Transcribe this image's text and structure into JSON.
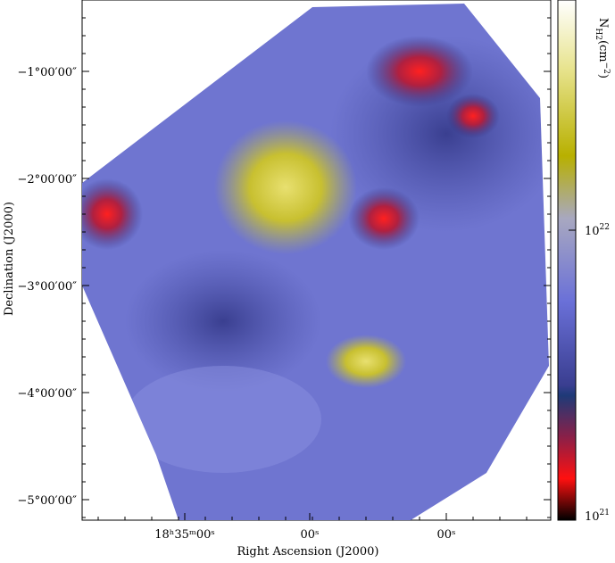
{
  "axes": {
    "x_label": "Right Ascension (J2000)",
    "y_label": "Declination (J2000)",
    "x_ticks": [
      "18ʰ35ᵐ00ˢ",
      "00ˢ",
      "00ˢ"
    ],
    "y_ticks": [
      "−1°00′00″",
      "−2°00′00″",
      "−3°00′00″",
      "−4°00′00″",
      "−5°00′00″"
    ]
  },
  "colorbar": {
    "label": {
      "symbol": "N",
      "subscript": "H2",
      "unit": "(cm",
      "exponent": "−2",
      "close": ")"
    },
    "ticks": [
      {
        "base": "10",
        "exponent": "22"
      },
      {
        "base": "10",
        "exponent": "21"
      }
    ]
  }
}
